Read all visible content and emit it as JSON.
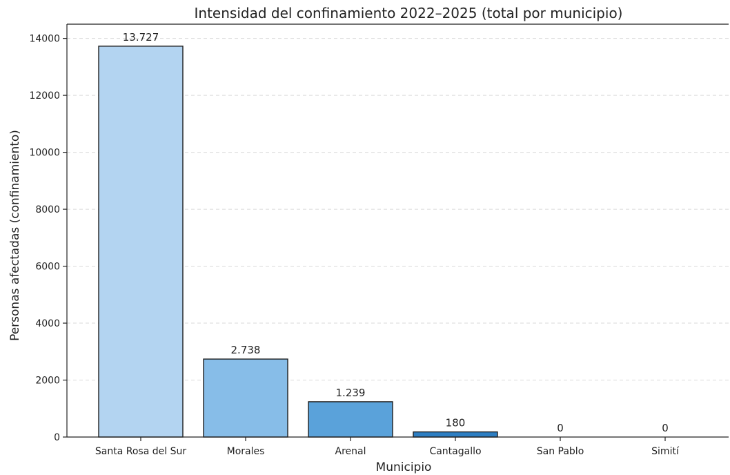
{
  "chart_data": {
    "type": "bar",
    "title": "Intensidad del confinamiento 2022–2025 (total por municipio)",
    "xlabel": "Municipio",
    "ylabel": "Personas afectadas (confinamiento)",
    "categories": [
      "Santa Rosa del Sur",
      "Morales",
      "Arenal",
      "Cantagallo",
      "San Pablo",
      "Simití"
    ],
    "values": [
      13727,
      2738,
      1239,
      180,
      0,
      0
    ],
    "value_labels": [
      "13.727",
      "2.738",
      "1.239",
      "180",
      "0",
      "0"
    ],
    "bar_colors": [
      "#b3d4f1",
      "#87bde8",
      "#5aa2da",
      "#2d7ec2",
      "#1b5f9f",
      "#124b82"
    ],
    "ylim": [
      0,
      14500
    ],
    "yticks": [
      0,
      2000,
      4000,
      6000,
      8000,
      10000,
      12000,
      14000
    ],
    "ytick_labels": [
      "0",
      "2000",
      "4000",
      "6000",
      "8000",
      "10000",
      "12000",
      "14000"
    ],
    "grid": "y-dashed",
    "legend": "none"
  }
}
